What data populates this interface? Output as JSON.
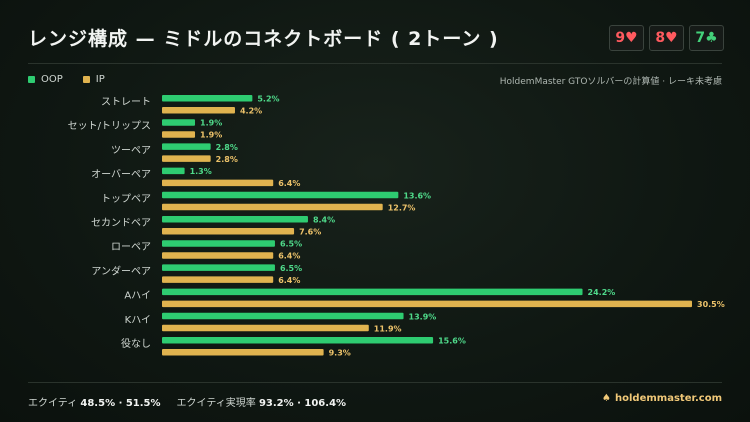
{
  "header": {
    "title": "レンジ構成 — ミドルのコネクトボード ( 2トーン )",
    "board": [
      {
        "rank": "9",
        "suit": "♥",
        "color": "#ff5a5f"
      },
      {
        "rank": "8",
        "suit": "♥",
        "color": "#ff5a5f"
      },
      {
        "rank": "7",
        "suit": "♣",
        "color": "#43d17a"
      }
    ]
  },
  "note": "HoldemMaster GTOソルバーの計算値 · レーキ未考慮",
  "colors": {
    "oop": "#2ecc71",
    "ip": "#e0b34f"
  },
  "chart_data": {
    "type": "bar",
    "orientation": "horizontal",
    "categories": [
      "ストレート",
      "セット/トリップス",
      "ツーペア",
      "オーバーペア",
      "トップペア",
      "セカンドペア",
      "ローペア",
      "アンダーペア",
      "Aハイ",
      "Kハイ",
      "役なし"
    ],
    "series": [
      {
        "name": "OOP",
        "values": [
          5.2,
          1.9,
          2.8,
          1.3,
          13.6,
          8.4,
          6.5,
          6.5,
          24.2,
          13.9,
          15.6
        ],
        "labels": [
          "5.2%",
          "1.9%",
          "2.8%",
          "1.3%",
          "13.6%",
          "8.4%",
          "6.5%",
          "6.5%",
          "24.2%",
          "13.9%",
          "15.6%"
        ]
      },
      {
        "name": "IP",
        "values": [
          4.2,
          1.9,
          2.8,
          6.4,
          12.7,
          7.6,
          6.4,
          6.4,
          30.5,
          11.9,
          9.3
        ],
        "labels": [
          "4.2%",
          "1.9%",
          "2.8%",
          "6.4%",
          "12.7%",
          "7.6%",
          "6.4%",
          "6.4%",
          "30.5%",
          "11.9%",
          "9.3%"
        ]
      }
    ],
    "xlim": [
      0,
      30.5
    ],
    "legend_position": "top-left",
    "grid": false
  },
  "footer": {
    "equity_label": "エクイティ",
    "equity_value": "48.5% · 51.5%",
    "realization_label": "エクイティ実現率",
    "realization_value": "93.2% · 106.4%",
    "brand_icon": "spade-icon",
    "brand": "holdemmaster.com"
  }
}
